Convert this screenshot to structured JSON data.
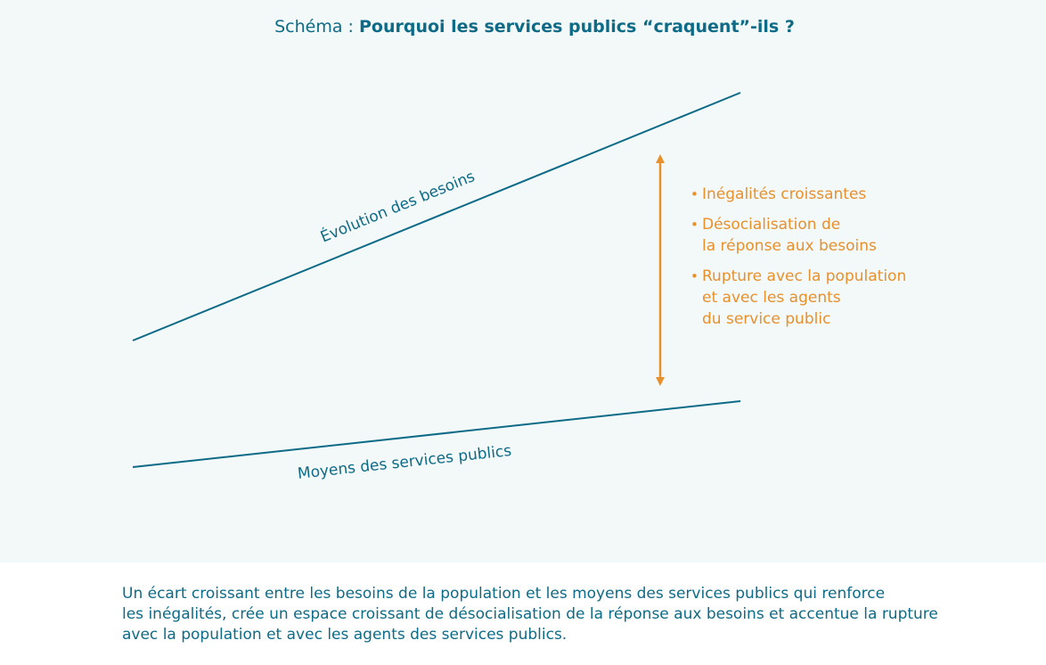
{
  "title": {
    "prefix": "Schéma : ",
    "strong": "Pourquoi les services publics “craquent”-ils ?"
  },
  "diagram": {
    "needs_line_label": "Évolution des besoins",
    "means_line_label": "Moyens des services publics",
    "gap_effects": [
      {
        "lines": [
          "Inégalités croissantes"
        ]
      },
      {
        "lines": [
          "Désocialisation de",
          "la réponse aux besoins"
        ]
      },
      {
        "lines": [
          "Rupture avec la population",
          "et avec les agents",
          "du service public"
        ]
      }
    ]
  },
  "caption": {
    "lines": [
      "Un écart croissant entre les besoins de la population et les moyens des services publics qui renforce",
      "les inégalités, crée un espace croissant de désocialisation de la réponse aux besoins et accentue la rupture",
      "avec la population et avec les agents des services publics."
    ]
  },
  "colors": {
    "primary": "#0d6b87",
    "accent": "#e8902c",
    "panel_background": "#f3f8f8",
    "page_background": "#ffffff"
  }
}
